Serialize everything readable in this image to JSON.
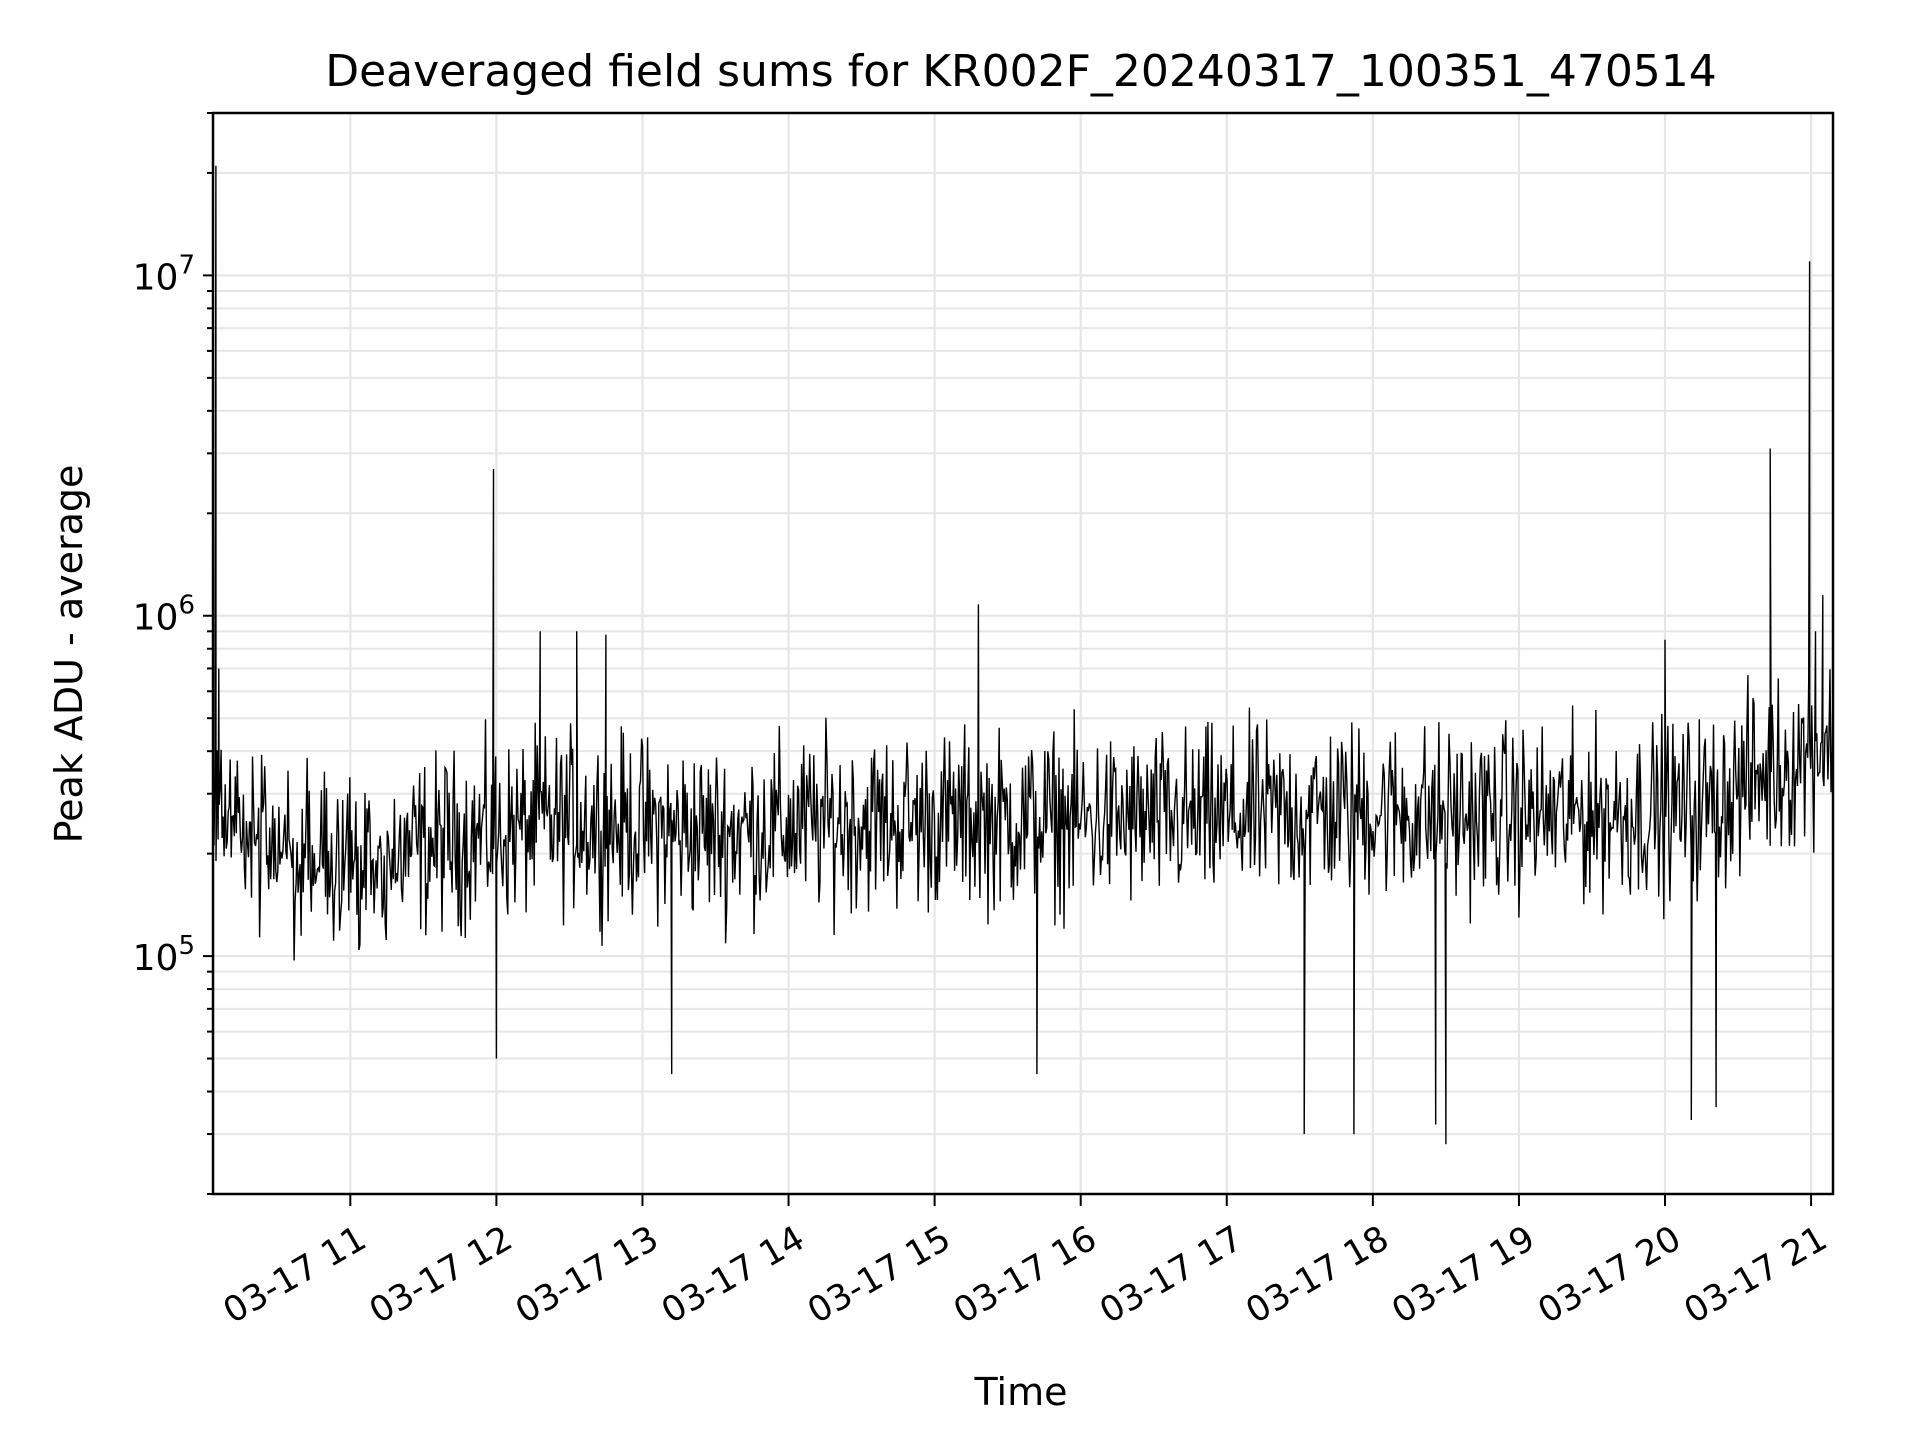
{
  "chart_data": {
    "type": "line",
    "title": "Deaveraged field sums for KR002F_20240317_100351_470514",
    "xlabel": "Time",
    "ylabel": "Peak ADU - average",
    "yscale": "log",
    "ylim": [
      20000,
      30000000
    ],
    "xlim_hours": [
      10.06,
      21.15
    ],
    "grid": true,
    "line_color": "#000000",
    "grid_color": "#e6e6e6",
    "x_ticks": [
      {
        "hour": 11,
        "label": "03-17 11"
      },
      {
        "hour": 12,
        "label": "03-17 12"
      },
      {
        "hour": 13,
        "label": "03-17 13"
      },
      {
        "hour": 14,
        "label": "03-17 14"
      },
      {
        "hour": 15,
        "label": "03-17 15"
      },
      {
        "hour": 16,
        "label": "03-17 16"
      },
      {
        "hour": 17,
        "label": "03-17 17"
      },
      {
        "hour": 18,
        "label": "03-17 18"
      },
      {
        "hour": 19,
        "label": "03-17 19"
      },
      {
        "hour": 20,
        "label": "03-17 20"
      },
      {
        "hour": 21,
        "label": "03-17 21"
      }
    ],
    "y_ticks": [
      {
        "value": 100000,
        "base": "10",
        "exp": "5"
      },
      {
        "value": 1000000,
        "base": "10",
        "exp": "6"
      },
      {
        "value": 10000000,
        "base": "10",
        "exp": "7"
      }
    ],
    "series": [
      {
        "name": "Peak ADU - average",
        "baseline": [
          [
            10.06,
            270000
          ],
          [
            10.5,
            200000
          ],
          [
            11.0,
            180000
          ],
          [
            11.5,
            210000
          ],
          [
            12.0,
            230000
          ],
          [
            12.5,
            250000
          ],
          [
            13.0,
            240000
          ],
          [
            13.5,
            230000
          ],
          [
            14.0,
            240000
          ],
          [
            14.5,
            250000
          ],
          [
            15.0,
            250000
          ],
          [
            15.5,
            250000
          ],
          [
            16.0,
            250000
          ],
          [
            16.5,
            250000
          ],
          [
            17.0,
            255000
          ],
          [
            17.5,
            265000
          ],
          [
            18.0,
            270000
          ],
          [
            18.5,
            260000
          ],
          [
            19.0,
            260000
          ],
          [
            19.5,
            260000
          ],
          [
            20.0,
            270000
          ],
          [
            20.3,
            280000
          ],
          [
            20.6,
            330000
          ],
          [
            20.9,
            380000
          ],
          [
            21.0,
            420000
          ],
          [
            21.15,
            430000
          ]
        ],
        "spikes": [
          [
            10.08,
            21000000
          ],
          [
            10.1,
            700000
          ],
          [
            11.98,
            2700000
          ],
          [
            12.3,
            900000
          ],
          [
            12.55,
            900000
          ],
          [
            12.75,
            880000
          ],
          [
            15.3,
            1080000
          ],
          [
            20.0,
            850000
          ],
          [
            20.72,
            3100000
          ],
          [
            20.99,
            11000000
          ],
          [
            21.03,
            900000
          ],
          [
            21.08,
            1150000
          ]
        ],
        "dips": [
          [
            12.0,
            50000
          ],
          [
            13.2,
            45000
          ],
          [
            15.7,
            45000
          ],
          [
            17.53,
            30000
          ],
          [
            17.87,
            30000
          ],
          [
            18.43,
            32000
          ],
          [
            18.5,
            28000
          ],
          [
            20.18,
            33000
          ],
          [
            20.35,
            36000
          ]
        ],
        "samples": 1600,
        "seed": 470514
      }
    ]
  }
}
